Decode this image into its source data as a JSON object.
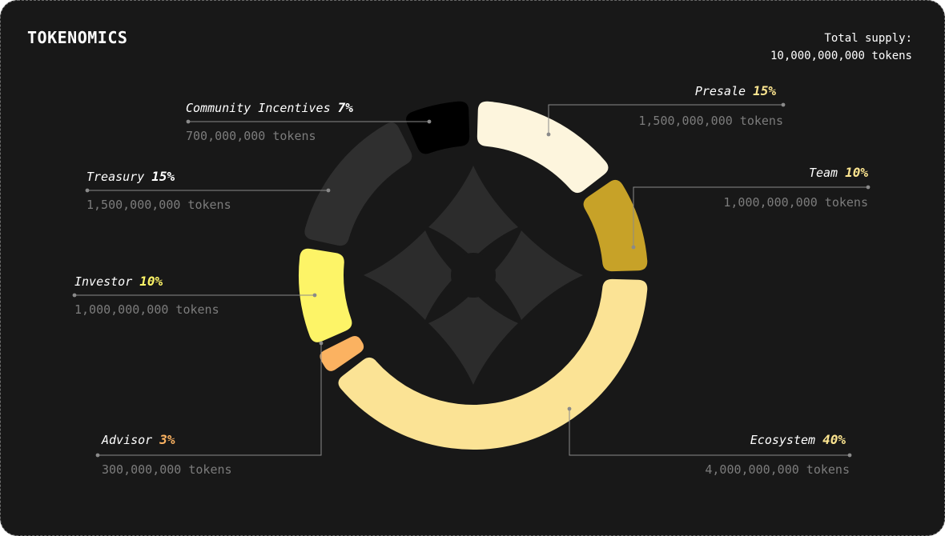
{
  "header": {
    "title": "TOKENOMICS",
    "supply_label": "Total supply:",
    "supply_value": "10,000,000,000 tokens"
  },
  "colors": {
    "background": "#181818",
    "leader_line": "#8a8a8a",
    "emblem": "#2c2c2c"
  },
  "emblem": {
    "icon": "four-point-star-logo-icon"
  },
  "chart_data": {
    "type": "pie",
    "style": "donut",
    "total_supply": "10,000,000,000 tokens",
    "segments": [
      {
        "name": "Presale",
        "pct_label": "15%",
        "value": 15,
        "tokens": "1,500,000,000 tokens",
        "color": "#fdf5dd",
        "label_color": "#fce590"
      },
      {
        "name": "Team",
        "pct_label": "10%",
        "value": 10,
        "tokens": "1,000,000,000 tokens",
        "color": "#c7a228",
        "label_color": "#fce590"
      },
      {
        "name": "Ecosystem",
        "pct_label": "40%",
        "value": 40,
        "tokens": "4,000,000,000 tokens",
        "color": "#fbe395",
        "label_color": "#fce590"
      },
      {
        "name": "Advisor",
        "pct_label": "3%",
        "value": 3,
        "tokens": "300,000,000 tokens",
        "color": "#fbb261",
        "label_color": "#fbb261"
      },
      {
        "name": "Investor",
        "pct_label": "10%",
        "value": 10,
        "tokens": "1,000,000,000 tokens",
        "color": "#fdf467",
        "label_color": "#fdf467"
      },
      {
        "name": "Treasury",
        "pct_label": "15%",
        "value": 15,
        "tokens": "1,500,000,000 tokens",
        "color": "#2f2f2f",
        "label_color": "#ffffff"
      },
      {
        "name": "Community Incentives",
        "pct_label": "7%",
        "value": 7,
        "tokens": "700,000,000 tokens",
        "color": "#000000",
        "label_color": "#ffffff"
      }
    ]
  }
}
